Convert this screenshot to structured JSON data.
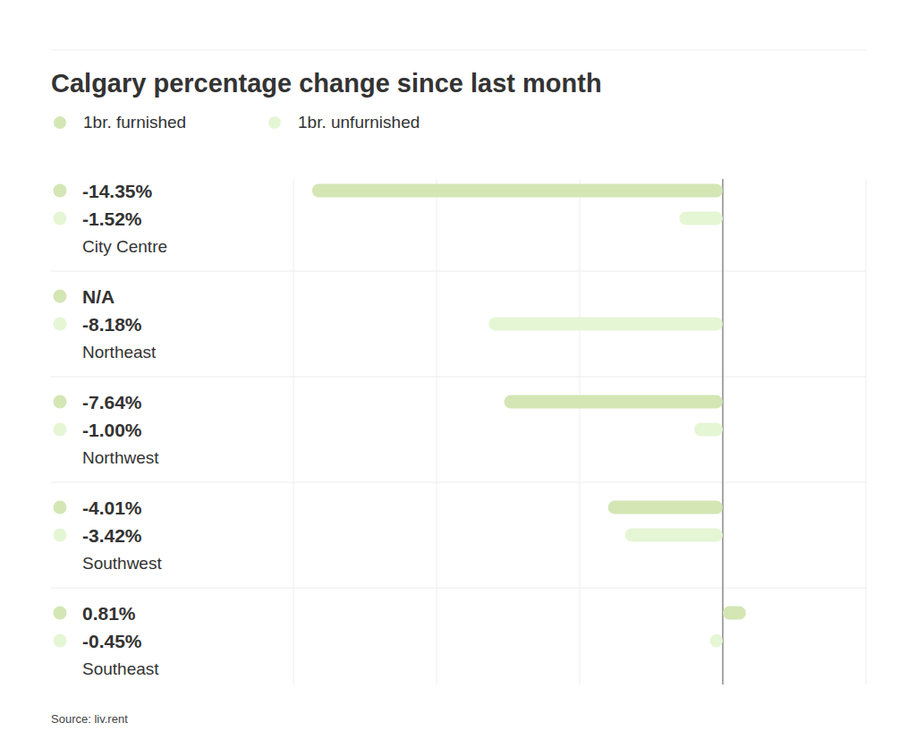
{
  "chart_data": {
    "type": "bar",
    "orientation": "horizontal",
    "title": "Calgary percentage change since last month",
    "source": "Source: liv.rent",
    "categories": [
      "City Centre",
      "Northeast",
      "Northwest",
      "Southwest",
      "Southeast"
    ],
    "series": [
      {
        "name": "1br. furnished",
        "color": "#d3e6b4",
        "values": [
          -14.35,
          null,
          -7.64,
          -4.01,
          0.81
        ],
        "value_labels": [
          "-14.35%",
          "N/A",
          "-7.64%",
          "-4.01%",
          "0.81%"
        ]
      },
      {
        "name": "1br. unfurnished",
        "color": "#e5f6d5",
        "values": [
          -1.52,
          -8.18,
          -1,
          -3.42,
          -0.45
        ],
        "value_labels": [
          "-1.52%",
          "-8.18%",
          "-1.00%",
          "-3.42%",
          "-0.45%"
        ]
      }
    ],
    "xlim": [
      -15,
      5
    ],
    "xticks": [
      -15,
      -10,
      -5,
      0,
      5
    ],
    "grid": true,
    "tick_labels": false,
    "data_labels": true,
    "legend": "top-left"
  }
}
